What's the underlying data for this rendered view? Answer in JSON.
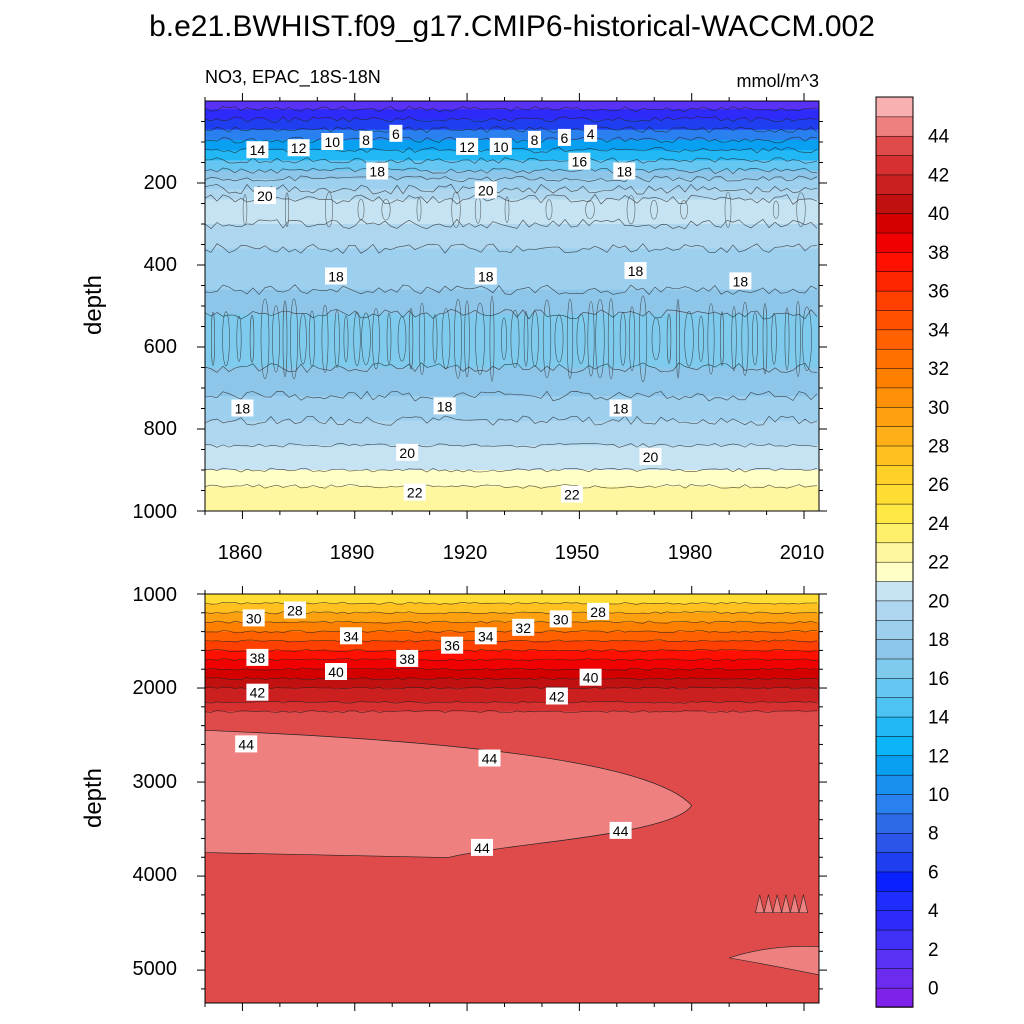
{
  "title": "b.e21.BWHIST.f09_g17.CMIP6-historical-WACCM.002",
  "chart_data": [
    {
      "type": "heatmap",
      "subtitle_left": "NO3, EPAC_18S-18N",
      "subtitle_right": "mmol/m^3",
      "ylabel": "depth",
      "xlim": [
        1850,
        2014
      ],
      "ylim": [
        1000,
        0
      ],
      "xticks": [
        "1860",
        "1890",
        "1920",
        "1950",
        "1980",
        "2010"
      ],
      "yticks": [
        "200",
        "400",
        "600",
        "800",
        "1000"
      ],
      "bands": [
        {
          "depth": 0,
          "value": 1
        },
        {
          "depth": 20,
          "value": 3
        },
        {
          "depth": 45,
          "value": 6
        },
        {
          "depth": 70,
          "value": 9
        },
        {
          "depth": 95,
          "value": 11
        },
        {
          "depth": 120,
          "value": 13
        },
        {
          "depth": 145,
          "value": 15
        },
        {
          "depth": 170,
          "value": 17
        },
        {
          "depth": 190,
          "value": 18.5
        },
        {
          "depth": 215,
          "value": 19.5
        },
        {
          "depth": 240,
          "value": 20.5
        },
        {
          "depth": 300,
          "value": 19.5
        },
        {
          "depth": 360,
          "value": 18.5
        },
        {
          "depth": 460,
          "value": 17.5
        },
        {
          "depth": 520,
          "value": 16.5
        },
        {
          "depth": 650,
          "value": 17.5
        },
        {
          "depth": 720,
          "value": 18.5
        },
        {
          "depth": 780,
          "value": 19
        },
        {
          "depth": 840,
          "value": 20
        },
        {
          "depth": 900,
          "value": 21
        },
        {
          "depth": 940,
          "value": 22.5
        },
        {
          "depth": 1000,
          "value": 23
        }
      ],
      "contour_labels": [
        {
          "text": "14",
          "x": 1864,
          "depth": 120
        },
        {
          "text": "12",
          "x": 1875,
          "depth": 115
        },
        {
          "text": "10",
          "x": 1884,
          "depth": 100
        },
        {
          "text": "8",
          "x": 1893,
          "depth": 95
        },
        {
          "text": "6",
          "x": 1901,
          "depth": 80
        },
        {
          "text": "12",
          "x": 1920,
          "depth": 112
        },
        {
          "text": "10",
          "x": 1929,
          "depth": 112
        },
        {
          "text": "8",
          "x": 1938,
          "depth": 95
        },
        {
          "text": "6",
          "x": 1946,
          "depth": 90
        },
        {
          "text": "4",
          "x": 1953,
          "depth": 80
        },
        {
          "text": "16",
          "x": 1950,
          "depth": 148
        },
        {
          "text": "18",
          "x": 1896,
          "depth": 172
        },
        {
          "text": "18",
          "x": 1962,
          "depth": 172
        },
        {
          "text": "20",
          "x": 1866,
          "depth": 232
        },
        {
          "text": "20",
          "x": 1925,
          "depth": 218
        },
        {
          "text": "18",
          "x": 1885,
          "depth": 428
        },
        {
          "text": "18",
          "x": 1925,
          "depth": 428
        },
        {
          "text": "18",
          "x": 1965,
          "depth": 415
        },
        {
          "text": "18",
          "x": 1993,
          "depth": 440
        },
        {
          "text": "18",
          "x": 1860,
          "depth": 750
        },
        {
          "text": "18",
          "x": 1914,
          "depth": 745
        },
        {
          "text": "18",
          "x": 1961,
          "depth": 750
        },
        {
          "text": "20",
          "x": 1904,
          "depth": 858
        },
        {
          "text": "20",
          "x": 1969,
          "depth": 868
        },
        {
          "text": "22",
          "x": 1906,
          "depth": 955
        },
        {
          "text": "22",
          "x": 1948,
          "depth": 960
        }
      ]
    },
    {
      "type": "heatmap",
      "ylabel": "depth",
      "xlim": [
        1850,
        2014
      ],
      "ylim": [
        5350,
        1000
      ],
      "yticks": [
        "1000",
        "2000",
        "3000",
        "4000",
        "5000"
      ],
      "bands": [
        {
          "depth": 1000,
          "value": 25
        },
        {
          "depth": 1100,
          "value": 27
        },
        {
          "depth": 1200,
          "value": 29
        },
        {
          "depth": 1300,
          "value": 31
        },
        {
          "depth": 1400,
          "value": 33
        },
        {
          "depth": 1500,
          "value": 35
        },
        {
          "depth": 1600,
          "value": 37
        },
        {
          "depth": 1700,
          "value": 38.5
        },
        {
          "depth": 1800,
          "value": 39.5
        },
        {
          "depth": 1900,
          "value": 40.5
        },
        {
          "depth": 2000,
          "value": 41.5
        },
        {
          "depth": 2150,
          "value": 42.5
        },
        {
          "depth": 2250,
          "value": 43.5
        },
        {
          "depth": 5350,
          "value": 43.5
        }
      ],
      "core_region": {
        "value": 44.5,
        "depth_top": 2450,
        "depth_bottom": 3750,
        "x_end": 1980
      },
      "contour_labels": [
        {
          "text": "30",
          "x": 1863,
          "depth": 1260
        },
        {
          "text": "28",
          "x": 1874,
          "depth": 1175
        },
        {
          "text": "34",
          "x": 1889,
          "depth": 1450
        },
        {
          "text": "38",
          "x": 1864,
          "depth": 1680
        },
        {
          "text": "40",
          "x": 1885,
          "depth": 1830
        },
        {
          "text": "38",
          "x": 1904,
          "depth": 1690
        },
        {
          "text": "36",
          "x": 1916,
          "depth": 1550
        },
        {
          "text": "34",
          "x": 1925,
          "depth": 1450
        },
        {
          "text": "32",
          "x": 1935,
          "depth": 1360
        },
        {
          "text": "30",
          "x": 1945,
          "depth": 1270
        },
        {
          "text": "28",
          "x": 1955,
          "depth": 1190
        },
        {
          "text": "40",
          "x": 1953,
          "depth": 1890
        },
        {
          "text": "42",
          "x": 1864,
          "depth": 2050
        },
        {
          "text": "42",
          "x": 1944,
          "depth": 2090
        },
        {
          "text": "44",
          "x": 1861,
          "depth": 2600
        },
        {
          "text": "44",
          "x": 1926,
          "depth": 2750
        },
        {
          "text": "44",
          "x": 1961,
          "depth": 3520
        },
        {
          "text": "44",
          "x": 1924,
          "depth": 3700
        }
      ]
    }
  ],
  "colorbar": {
    "labels": [
      "44",
      "42",
      "40",
      "38",
      "36",
      "34",
      "32",
      "30",
      "28",
      "26",
      "24",
      "22",
      "20",
      "18",
      "16",
      "14",
      "12",
      "10",
      "8",
      "6",
      "4",
      "2",
      "0"
    ],
    "colors": [
      "#7e22ea",
      "#6c2cf0",
      "#5a32f5",
      "#4030f8",
      "#2e2afa",
      "#1e2cfd",
      "#0a20ff",
      "#1f3ef0",
      "#2b55e8",
      "#2c6ae8",
      "#2b80f0",
      "#1990f0",
      "#0aa0f2",
      "#0cb4f8",
      "#22b8f5",
      "#4cc3f3",
      "#66c6f2",
      "#7ecbee",
      "#8ec6ea",
      "#9dcfee",
      "#afd6ef",
      "#c5e3f2",
      "#ffffc6",
      "#fff7a0",
      "#fff06c",
      "#ffe844",
      "#ffdd33",
      "#ffd028",
      "#ffc020",
      "#ffb018",
      "#ffa010",
      "#ff9008",
      "#ff8000",
      "#ff7000",
      "#ff6000",
      "#ff5000",
      "#ff4000",
      "#ff2500",
      "#ff1000",
      "#f00000",
      "#d40000",
      "#c01010",
      "#cc2020",
      "#d63030",
      "#df4a4a",
      "#ee8080",
      "#f8b0b0"
    ]
  }
}
